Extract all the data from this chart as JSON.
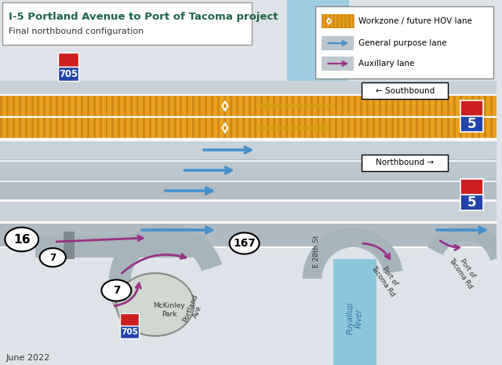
{
  "title": "I-5 Portland Avenue to Port of Tacoma project",
  "subtitle": "Final northbound configuration",
  "bg_color": "#dde3e8",
  "road_gray": "#b8c2ca",
  "road_light": "#c8d0d8",
  "road_dark": "#a8b2ba",
  "hov_orange": "#e8a020",
  "hov_stripe": "#c88010",
  "river_color": "#8cc8dc",
  "river_text_color": "#3070a0",
  "legend_items": [
    {
      "label": "Workzone / future HOV lane",
      "type": "hov"
    },
    {
      "label": "General purpose lane",
      "type": "general"
    },
    {
      "label": "Auxillary lane",
      "type": "aux"
    }
  ],
  "southbound_label": "← Southbound",
  "northbound_label": "Northbound →",
  "date_label": "June 2022",
  "title_color": "#1a6644",
  "arrow_blue": "#4490cc",
  "arrow_purple": "#993388",
  "arrow_gold": "#d4a010",
  "shield_red": "#cc2020",
  "shield_blue": "#2244aa",
  "white": "#ffffff",
  "black": "#111111"
}
